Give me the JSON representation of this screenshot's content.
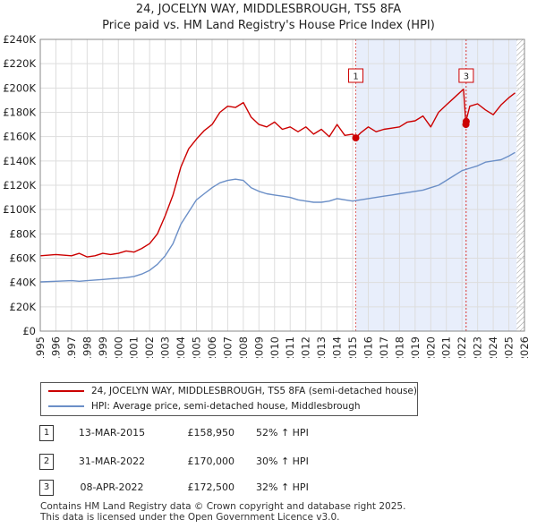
{
  "header": {
    "title": "24, JOCELYN WAY, MIDDLESBROUGH, TS5 8FA",
    "subtitle": "Price paid vs. HM Land Registry's House Price Index (HPI)"
  },
  "chart_data": {
    "type": "line",
    "title": "24, JOCELYN WAY, MIDDLESBROUGH, TS5 8FA",
    "subtitle": "Price paid vs. HM Land Registry's House Price Index (HPI)",
    "xlabel": "",
    "ylabel": "",
    "xlim": [
      1995,
      2026
    ],
    "ylim": [
      0,
      240000
    ],
    "x_ticks": [
      1995,
      1996,
      1997,
      1998,
      1999,
      2000,
      2001,
      2002,
      2003,
      2004,
      2005,
      2006,
      2007,
      2008,
      2009,
      2010,
      2011,
      2012,
      2013,
      2014,
      2015,
      2016,
      2017,
      2018,
      2019,
      2020,
      2021,
      2022,
      2023,
      2024,
      2025,
      2026
    ],
    "y_ticks": [
      0,
      20000,
      40000,
      60000,
      80000,
      100000,
      120000,
      140000,
      160000,
      180000,
      200000,
      220000,
      240000
    ],
    "y_tick_labels": [
      "£0",
      "£20K",
      "£40K",
      "£60K",
      "£80K",
      "£100K",
      "£120K",
      "£140K",
      "£160K",
      "£180K",
      "£200K",
      "£220K",
      "£240K"
    ],
    "grid": true,
    "shaded_region": {
      "from": 2015.2,
      "to": 2025.5,
      "color": "#e8eefb"
    },
    "hatched_region": {
      "from": 2025.5,
      "to": 2026
    },
    "series": [
      {
        "name": "24, JOCELYN WAY, MIDDLESBROUGH, TS5 8FA (semi-detached house)",
        "color": "#cc0000",
        "x": [
          1995,
          1996,
          1997,
          1997.5,
          1998,
          1998.5,
          1999,
          1999.5,
          2000,
          2000.5,
          2001,
          2001.5,
          2002,
          2002.5,
          2003,
          2003.5,
          2004,
          2004.5,
          2005,
          2005.5,
          2006,
          2006.5,
          2007,
          2007.5,
          2008,
          2008.5,
          2009,
          2009.5,
          2010,
          2010.5,
          2011,
          2011.5,
          2012,
          2012.5,
          2013,
          2013.5,
          2014,
          2014.5,
          2015,
          2015.2,
          2015.5,
          2016,
          2016.5,
          2017,
          2017.5,
          2018,
          2018.5,
          2019,
          2019.5,
          2020,
          2020.5,
          2021,
          2021.5,
          2022,
          2022.1,
          2022.25,
          2022.3,
          2022.5,
          2023,
          2023.5,
          2024,
          2024.5,
          2025,
          2025.4
        ],
        "y": [
          62000,
          63000,
          62000,
          64000,
          61000,
          62000,
          64000,
          63000,
          64000,
          66000,
          65000,
          68000,
          72000,
          80000,
          95000,
          112000,
          135000,
          150000,
          158000,
          165000,
          170000,
          180000,
          185000,
          184000,
          188000,
          176000,
          170000,
          168000,
          172000,
          166000,
          168000,
          164000,
          168000,
          162000,
          166000,
          160000,
          170000,
          161000,
          162000,
          158950,
          163000,
          168000,
          164000,
          166000,
          167000,
          168000,
          172000,
          173000,
          177000,
          168000,
          180000,
          186000,
          192000,
          198000,
          199000,
          170000,
          175000,
          185000,
          187000,
          182000,
          178000,
          186000,
          192000,
          196000
        ]
      },
      {
        "name": "HPI: Average price, semi-detached house, Middlesbrough",
        "color": "#6b8fc7",
        "x": [
          1995,
          1996,
          1997,
          1997.5,
          1998,
          1998.5,
          1999,
          1999.5,
          2000,
          2000.5,
          2001,
          2001.5,
          2002,
          2002.5,
          2003,
          2003.5,
          2004,
          2004.5,
          2005,
          2005.5,
          2006,
          2006.5,
          2007,
          2007.5,
          2008,
          2008.5,
          2009,
          2009.5,
          2010,
          2010.5,
          2011,
          2011.5,
          2012,
          2012.5,
          2013,
          2013.5,
          2014,
          2014.5,
          2015,
          2015.5,
          2016,
          2016.5,
          2017,
          2017.5,
          2018,
          2018.5,
          2019,
          2019.5,
          2020,
          2020.5,
          2021,
          2021.5,
          2022,
          2022.5,
          2023,
          2023.5,
          2024,
          2024.5,
          2025,
          2025.4
        ],
        "y": [
          40500,
          41000,
          41500,
          41000,
          41500,
          42000,
          42500,
          43000,
          43500,
          44000,
          45000,
          47000,
          50000,
          55000,
          62000,
          72000,
          88000,
          98000,
          108000,
          113000,
          118000,
          122000,
          124000,
          125000,
          124000,
          118000,
          115000,
          113000,
          112000,
          111000,
          110000,
          108000,
          107000,
          106000,
          106000,
          107000,
          109000,
          108000,
          107000,
          108000,
          109000,
          110000,
          111000,
          112000,
          113000,
          114000,
          115000,
          116000,
          118000,
          120000,
          124000,
          128000,
          132000,
          134000,
          136000,
          139000,
          140000,
          141000,
          144000,
          147000
        ]
      }
    ],
    "transactions": [
      {
        "label": "1",
        "x": 2015.2,
        "price": 158950
      },
      {
        "label": "2",
        "x": 2022.25,
        "price": 170000
      },
      {
        "label": "3",
        "x": 2022.27,
        "price": 172500
      }
    ],
    "marker_labels": [
      {
        "label": "1",
        "x": 2015.2
      },
      {
        "label": "3",
        "x": 2022.27
      }
    ]
  },
  "legend": {
    "property_label": "24, JOCELYN WAY, MIDDLESBROUGH, TS5 8FA (semi-detached house)",
    "hpi_label": "HPI: Average price, semi-detached house, Middlesbrough",
    "property_color": "#cc0000",
    "hpi_color": "#6b8fc7"
  },
  "transactions_table": [
    {
      "num": "1",
      "date": "13-MAR-2015",
      "price": "£158,950",
      "hpi": "52% ↑ HPI"
    },
    {
      "num": "2",
      "date": "31-MAR-2022",
      "price": "£170,000",
      "hpi": "30% ↑ HPI"
    },
    {
      "num": "3",
      "date": "08-APR-2022",
      "price": "£172,500",
      "hpi": "32% ↑ HPI"
    }
  ],
  "footer": {
    "line1": "Contains HM Land Registry data © Crown copyright and database right 2025.",
    "line2": "This data is licensed under the Open Government Licence v3.0."
  }
}
